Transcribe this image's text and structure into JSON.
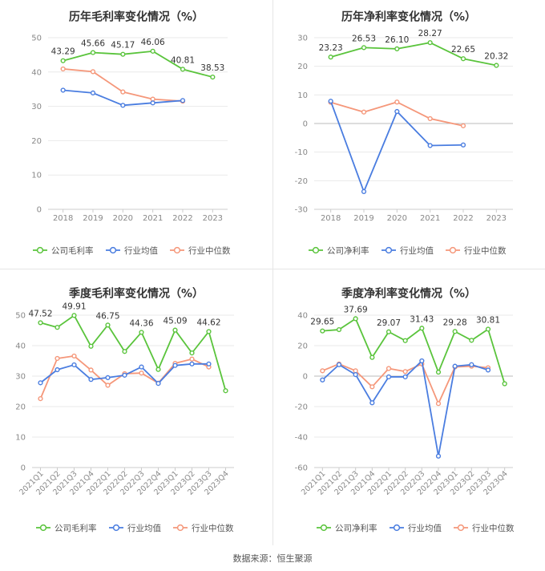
{
  "colors": {
    "company": "#5ac43c",
    "industry_avg": "#4a7de0",
    "industry_median": "#f5977a",
    "axis_text": "#888888",
    "grid": "#e9e9e9",
    "title": "#333333"
  },
  "legend": {
    "gross_company": "公司毛利率",
    "net_company": "公司净利率",
    "avg": "行业均值",
    "median": "行业中位数"
  },
  "source": "数据来源：恒生聚源",
  "chart_data": [
    {
      "id": "annual-gross",
      "type": "line",
      "title": "历年毛利率变化情况（%）",
      "categories": [
        "2018",
        "2019",
        "2020",
        "2021",
        "2022",
        "2023"
      ],
      "ylim": [
        0,
        50
      ],
      "yticks": [
        0,
        10,
        20,
        30,
        40,
        50
      ],
      "legend_company_key": "gross_company",
      "series": [
        {
          "key": "company",
          "values": [
            43.29,
            45.66,
            45.17,
            46.06,
            40.81,
            38.53
          ],
          "labels": [
            "43.29",
            "45.66",
            "45.17",
            "46.06",
            "40.81",
            "38.53"
          ]
        },
        {
          "key": "industry_avg",
          "values": [
            34.7,
            33.9,
            30.3,
            31.0,
            31.7,
            null
          ]
        },
        {
          "key": "industry_median",
          "values": [
            40.9,
            40.1,
            34.2,
            32.1,
            31.5,
            null
          ]
        }
      ]
    },
    {
      "id": "annual-net",
      "type": "line",
      "title": "历年净利率变化情况（%）",
      "categories": [
        "2018",
        "2019",
        "2020",
        "2021",
        "2022",
        "2023"
      ],
      "ylim": [
        -30,
        30
      ],
      "yticks": [
        -30,
        -20,
        -10,
        0,
        10,
        20,
        30
      ],
      "legend_company_key": "net_company",
      "series": [
        {
          "key": "company",
          "values": [
            23.23,
            26.53,
            26.1,
            28.27,
            22.65,
            20.32
          ],
          "labels": [
            "23.23",
            "26.53",
            "26.10",
            "28.27",
            "22.65",
            "20.32"
          ]
        },
        {
          "key": "industry_avg",
          "values": [
            7.8,
            -23.8,
            4.2,
            -7.7,
            -7.5,
            null
          ]
        },
        {
          "key": "industry_median",
          "values": [
            7.4,
            4.0,
            7.5,
            1.7,
            -0.8,
            null
          ]
        }
      ]
    },
    {
      "id": "quarterly-gross",
      "type": "line",
      "title": "季度毛利率变化情况（%）",
      "categories": [
        "2021Q1",
        "2021Q2",
        "2021Q3",
        "2021Q4",
        "2022Q1",
        "2022Q2",
        "2022Q3",
        "2022Q4",
        "2023Q1",
        "2023Q2",
        "2023Q3",
        "2023Q4"
      ],
      "ylim": [
        0,
        50
      ],
      "yticks": [
        0,
        10,
        20,
        30,
        40,
        50
      ],
      "legend_company_key": "gross_company",
      "series": [
        {
          "key": "company",
          "values": [
            47.52,
            46.0,
            49.91,
            39.8,
            46.75,
            38.1,
            44.36,
            32.2,
            45.09,
            37.6,
            44.62,
            25.2
          ],
          "labels": [
            "47.52",
            "",
            "49.91",
            "",
            "46.75",
            "",
            "44.36",
            "",
            "45.09",
            "",
            "44.62",
            ""
          ]
        },
        {
          "key": "industry_avg",
          "values": [
            27.8,
            32.1,
            33.7,
            28.9,
            29.5,
            30.3,
            33.0,
            27.6,
            33.5,
            34.0,
            34.0,
            null
          ]
        },
        {
          "key": "industry_median",
          "values": [
            22.6,
            35.8,
            36.6,
            32.0,
            27.0,
            30.8,
            31.0,
            27.7,
            34.2,
            35.6,
            33.0,
            null
          ]
        }
      ]
    },
    {
      "id": "quarterly-net",
      "type": "line",
      "title": "季度净利率变化情况（%）",
      "categories": [
        "2021Q1",
        "2021Q2",
        "2021Q3",
        "2021Q4",
        "2022Q1",
        "2022Q2",
        "2022Q3",
        "2022Q4",
        "2023Q1",
        "2023Q2",
        "2023Q3",
        "2023Q4"
      ],
      "ylim": [
        -60,
        40
      ],
      "yticks": [
        -60,
        -40,
        -20,
        0,
        20,
        40
      ],
      "legend_company_key": "net_company",
      "series": [
        {
          "key": "company",
          "values": [
            29.65,
            30.5,
            37.69,
            12.3,
            29.07,
            23.3,
            31.43,
            2.6,
            29.28,
            23.5,
            30.81,
            -5.0
          ],
          "labels": [
            "29.65",
            "",
            "37.69",
            "",
            "29.07",
            "",
            "31.43",
            "",
            "29.28",
            "",
            "30.81",
            ""
          ]
        },
        {
          "key": "industry_avg",
          "values": [
            -2.5,
            7.5,
            1.0,
            -17.5,
            -0.5,
            -0.5,
            10.0,
            -52.5,
            6.5,
            7.5,
            4.0,
            null
          ]
        },
        {
          "key": "industry_median",
          "values": [
            3.5,
            8.0,
            3.5,
            -7.0,
            5.0,
            3.0,
            8.0,
            -18.0,
            6.0,
            6.5,
            5.5,
            null
          ]
        }
      ]
    }
  ]
}
